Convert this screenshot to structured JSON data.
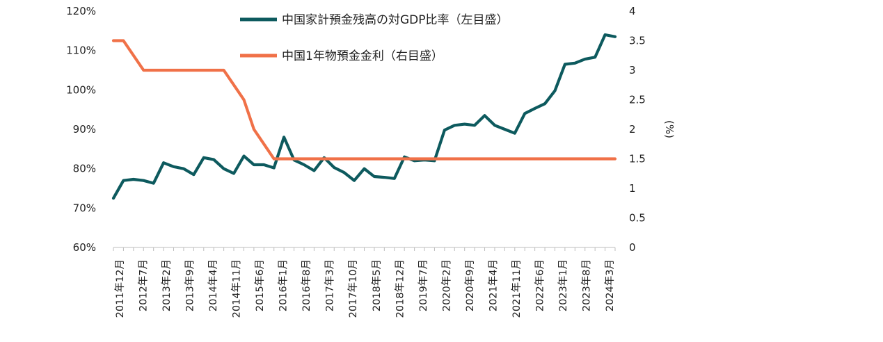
{
  "chart_data": {
    "type": "line",
    "y_left": {
      "ticks": [
        "120%",
        "110%",
        "100%",
        "90%",
        "80%",
        "70%",
        "60%"
      ],
      "range": [
        60,
        120
      ]
    },
    "y_right": {
      "label": "(%)",
      "ticks": [
        "4",
        "3.5",
        "3",
        "2.5",
        "2",
        "1.5",
        "1",
        "0.5",
        "0"
      ],
      "range": [
        0,
        4
      ]
    },
    "x_tick_labels": [
      "2011年12月",
      "2012年7月",
      "2013年2月",
      "2013年9月",
      "2014年4月",
      "2014年11月",
      "2015年6月",
      "2016年1月",
      "2016年8月",
      "2017年3月",
      "2017年10月",
      "2018年5月",
      "2018年12月",
      "2019年7月",
      "2020年2月",
      "2020年9月",
      "2021年4月",
      "2021年11月",
      "2022年6月",
      "2023年1月",
      "2023年8月",
      "2024年3月"
    ],
    "legend_position": "top-center",
    "series": [
      {
        "name": "中国家計預金残高の対GDP比率（左目盛）",
        "axis": "left",
        "color": "#0d5a5e",
        "points": [
          [
            0,
            72.5
          ],
          [
            0.5,
            77.0
          ],
          [
            1.0,
            77.3
          ],
          [
            1.5,
            77.0
          ],
          [
            2.0,
            76.3
          ],
          [
            2.5,
            81.5
          ],
          [
            3.0,
            80.5
          ],
          [
            3.5,
            80.0
          ],
          [
            4.0,
            78.5
          ],
          [
            4.5,
            82.8
          ],
          [
            5.0,
            82.3
          ],
          [
            5.5,
            80.0
          ],
          [
            6.0,
            78.8
          ],
          [
            6.5,
            83.2
          ],
          [
            7.0,
            81.0
          ],
          [
            7.5,
            81.0
          ],
          [
            8.0,
            80.2
          ],
          [
            8.5,
            88.0
          ],
          [
            9.0,
            82.2
          ],
          [
            9.5,
            81.0
          ],
          [
            10.0,
            79.5
          ],
          [
            10.5,
            82.8
          ],
          [
            11.0,
            80.3
          ],
          [
            11.5,
            79.0
          ],
          [
            12.0,
            77.0
          ],
          [
            12.5,
            80.0
          ],
          [
            13.0,
            78.0
          ],
          [
            13.5,
            77.8
          ],
          [
            14.0,
            77.5
          ],
          [
            14.5,
            83.0
          ],
          [
            15.0,
            82.0
          ],
          [
            15.5,
            82.2
          ],
          [
            16.0,
            82.0
          ],
          [
            16.5,
            89.8
          ],
          [
            17.0,
            91.0
          ],
          [
            17.5,
            91.3
          ],
          [
            18.0,
            91.0
          ],
          [
            18.5,
            93.5
          ],
          [
            19.0,
            91.0
          ],
          [
            19.5,
            90.0
          ],
          [
            20.0,
            89.0
          ],
          [
            20.5,
            94.0
          ],
          [
            21.0,
            95.3
          ],
          [
            21.5,
            96.5
          ],
          [
            22.0,
            99.8
          ],
          [
            22.5,
            106.5
          ],
          [
            23.0,
            106.8
          ],
          [
            23.5,
            107.8
          ],
          [
            24.0,
            108.3
          ],
          [
            24.5,
            114.0
          ],
          [
            25.0,
            113.5
          ]
        ]
      },
      {
        "name": "中国1年物預金金利（右目盛）",
        "axis": "right",
        "color": "#f07148",
        "points": [
          [
            0,
            3.5
          ],
          [
            0.5,
            3.5
          ],
          [
            1.5,
            3.0
          ],
          [
            5.5,
            3.0
          ],
          [
            6.5,
            2.5
          ],
          [
            7.0,
            2.0
          ],
          [
            8.0,
            1.5
          ],
          [
            25.0,
            1.5
          ]
        ]
      }
    ]
  }
}
